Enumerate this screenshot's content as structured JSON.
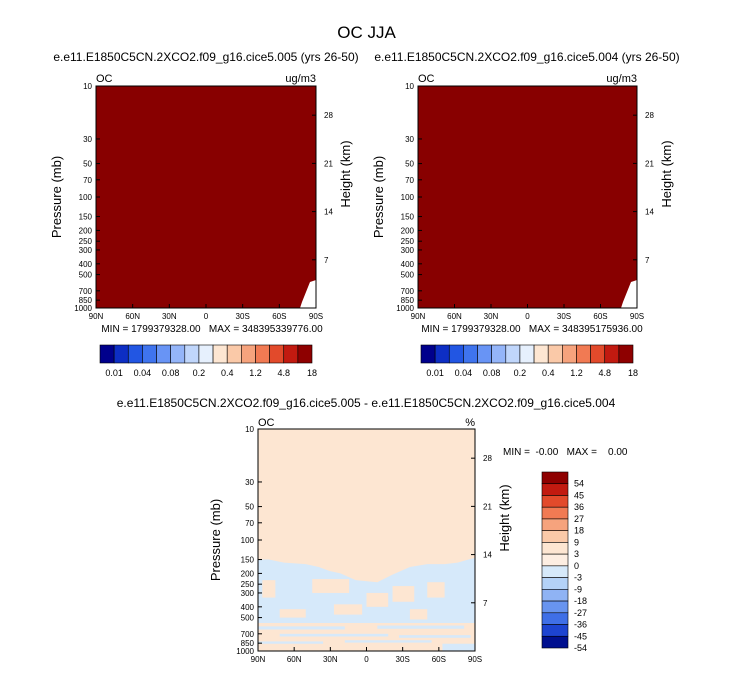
{
  "page_title": "OC JJA",
  "colors": {
    "background": "#ffffff",
    "field_fill": "#880000",
    "diff_positive": "#fde6d2",
    "diff_negative": "#d6e9fa"
  },
  "chart_data": [
    {
      "type": "heatmap",
      "title": "e.e11.E1850C5CN.2XCO2.f09_g16.cice5.005 (yrs 26-50)",
      "corner_left": "OC",
      "corner_right": "ug/m3",
      "ylabel": "Pressure (mb)",
      "ylabel_right": "Height (km)",
      "x_ticks": [
        "90N",
        "60N",
        "30N",
        "0",
        "30S",
        "60S",
        "90S"
      ],
      "y_ticks": [
        "10",
        "30",
        "50",
        "70",
        "100",
        "150",
        "200",
        "250",
        "300",
        "400",
        "500",
        "700",
        "850",
        "1000"
      ],
      "y_ticks_right": [
        "28",
        "21",
        "14",
        "7"
      ],
      "stats": "MIN = 1799379328.00   MAX = 348395339776.00",
      "field_value": "above 18 (darkest class everywhere)",
      "colorbar": {
        "labels": [
          "0.01",
          "0.04",
          "0.08",
          "0.2",
          "0.4",
          "1.2",
          "4.8",
          "18"
        ],
        "colors": [
          "#00008c",
          "#0d2ec4",
          "#2256e3",
          "#3f74ee",
          "#6894f5",
          "#94b5f9",
          "#c0d6fb",
          "#e6f0fd",
          "#fde6d2",
          "#fac9a8",
          "#f6a37d",
          "#f17a53",
          "#e24a2b",
          "#c21a10",
          "#8e0000"
        ]
      }
    },
    {
      "type": "heatmap",
      "title": "e.e11.E1850C5CN.2XCO2.f09_g16.cice5.004 (yrs 26-50)",
      "corner_left": "OC",
      "corner_right": "ug/m3",
      "ylabel": "Pressure (mb)",
      "ylabel_right": "Height (km)",
      "x_ticks": [
        "90N",
        "60N",
        "30N",
        "0",
        "30S",
        "60S",
        "90S"
      ],
      "y_ticks": [
        "10",
        "30",
        "50",
        "70",
        "100",
        "150",
        "200",
        "250",
        "300",
        "400",
        "500",
        "700",
        "850",
        "1000"
      ],
      "y_ticks_right": [
        "28",
        "21",
        "14",
        "7"
      ],
      "stats": "MIN = 1799379328.00   MAX = 348395175936.00",
      "field_value": "above 18 (darkest class everywhere)",
      "colorbar": {
        "labels": [
          "0.01",
          "0.04",
          "0.08",
          "0.2",
          "0.4",
          "1.2",
          "4.8",
          "18"
        ],
        "colors": [
          "#00008c",
          "#0d2ec4",
          "#2256e3",
          "#3f74ee",
          "#6894f5",
          "#94b5f9",
          "#c0d6fb",
          "#e6f0fd",
          "#fde6d2",
          "#fac9a8",
          "#f6a37d",
          "#f17a53",
          "#e24a2b",
          "#c21a10",
          "#8e0000"
        ]
      }
    },
    {
      "type": "heatmap",
      "title": "e.e11.E1850C5CN.2XCO2.f09_g16.cice5.005 - e.e11.E1850C5CN.2XCO2.f09_g16.cice5.004",
      "corner_left": "OC",
      "corner_right": "%",
      "ylabel": "Pressure (mb)",
      "ylabel_right": "Height (km)",
      "x_ticks": [
        "90N",
        "60N",
        "30N",
        "0",
        "30S",
        "60S",
        "90S"
      ],
      "y_ticks": [
        "10",
        "30",
        "50",
        "70",
        "100",
        "150",
        "200",
        "250",
        "300",
        "400",
        "500",
        "700",
        "850",
        "1000"
      ],
      "y_ticks_right": [
        "28",
        "21",
        "14",
        "7"
      ],
      "stats": "MIN =  -0.00   MAX =    0.00",
      "field_value": "between -3 and 3 everywhere (0 to 3 aloft, mixed -3 to 3 below 150 mb)",
      "colorbar": {
        "labels": [
          "54",
          "45",
          "36",
          "27",
          "18",
          "9",
          "3",
          "0",
          "-3",
          "-9",
          "-18",
          "-27",
          "-36",
          "-45",
          "-54"
        ],
        "colors": [
          "#8e0000",
          "#c21a10",
          "#e24a2b",
          "#f17a53",
          "#f6a37d",
          "#fac9a8",
          "#fde6d2",
          "#fdeee2",
          "#d6e9fa",
          "#b4d2f7",
          "#8fb3f4",
          "#6894ef",
          "#3f6fe7",
          "#1d44d1",
          "#00108f"
        ]
      }
    }
  ]
}
